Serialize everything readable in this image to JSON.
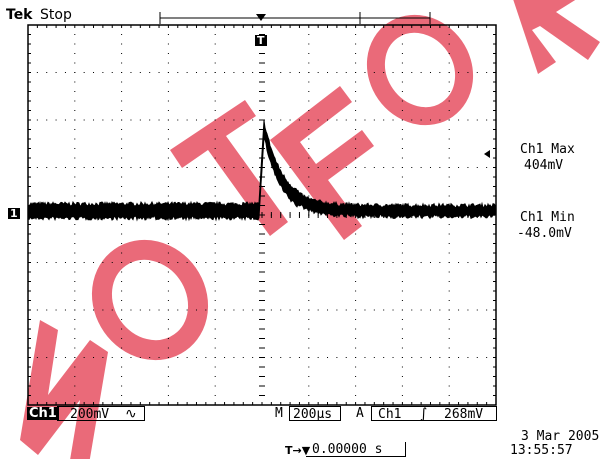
{
  "header": {
    "brand": "Tek",
    "acq_state": "Stop"
  },
  "ch1_ground_marker": "1",
  "trigger_marker": "T",
  "measurements": [
    {
      "label": "Ch1 Max",
      "value": "404mV"
    },
    {
      "label": "Ch1 Min",
      "value": "-48.0mV"
    }
  ],
  "footer": {
    "channel": "Ch1",
    "volts_div": "200mV",
    "coupling_symbol": "∿",
    "timebase_prefix": "M",
    "time_div": "200µs",
    "trigger_prefix": "A",
    "trigger_source": "Ch1",
    "trigger_slope_symbol": "∫",
    "trigger_level": "268mV",
    "position_symbol": "T→▼",
    "position": "0.00000 s",
    "date": "3 Mar 2005",
    "time": "13:55:57"
  },
  "watermark": "NOT FOR",
  "colors": {
    "watermark": "#e85a6a",
    "trace": "#000000",
    "background": "#ffffff"
  }
}
